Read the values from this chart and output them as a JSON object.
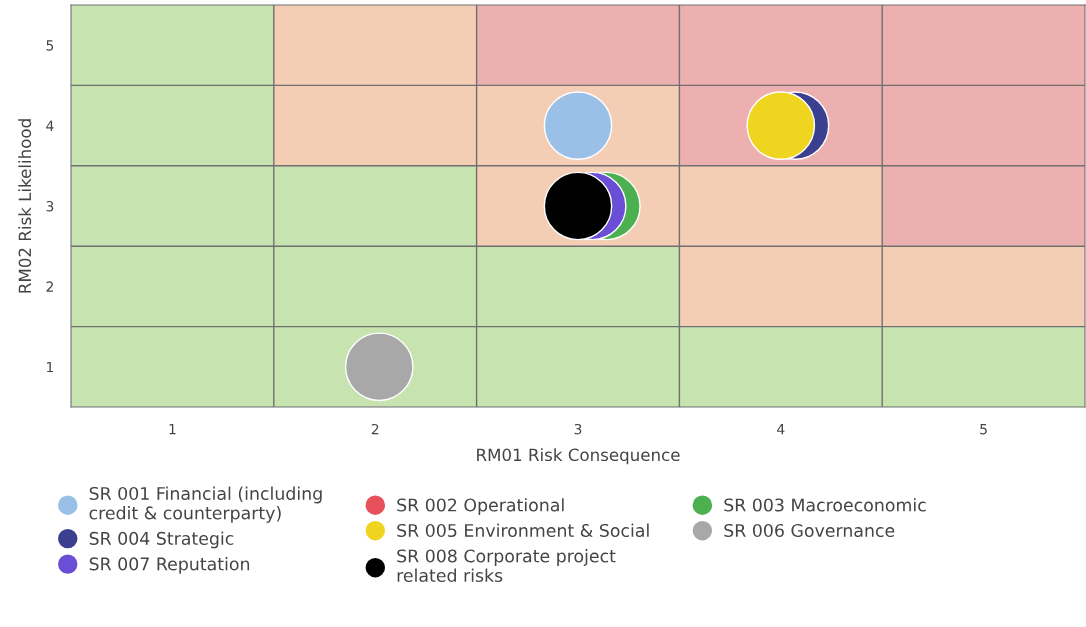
{
  "chart_data": {
    "type": "scatter",
    "xlabel": "RM01 Risk Consequence",
    "ylabel": "RM02 Risk Likelihood",
    "xlim": [
      0.5,
      5.5
    ],
    "ylim": [
      0.5,
      5.5
    ],
    "xticks": [
      1,
      2,
      3,
      4,
      5
    ],
    "yticks": [
      1,
      2,
      3,
      4,
      5
    ],
    "grid": true,
    "legend": "bottom",
    "marker": "circle",
    "series": [
      {
        "name": "SR 001 Financial (including credit & counterparty)",
        "color": "#9bc0e8",
        "x": [
          3.0
        ],
        "values": [
          4
        ]
      },
      {
        "name": "SR 002 Operational",
        "color": "#e8505b",
        "x": [
          null
        ],
        "values": [
          null
        ]
      },
      {
        "name": "SR 003 Macroeconomic",
        "color": "#4caf50",
        "x": [
          3.14
        ],
        "values": [
          3
        ]
      },
      {
        "name": "SR 004 Strategic",
        "color": "#3a3f8f",
        "x": [
          4.07
        ],
        "values": [
          4
        ]
      },
      {
        "name": "SR 005 Environment & Social",
        "color": "#f0d520",
        "x": [
          4.0
        ],
        "values": [
          4
        ]
      },
      {
        "name": "SR 006 Governance",
        "color": "#a8a8a8",
        "x": [
          2.02
        ],
        "values": [
          1
        ]
      },
      {
        "name": "SR 007 Reputation",
        "color": "#6a4fd6",
        "x": [
          3.07
        ],
        "values": [
          3
        ]
      },
      {
        "name": "SR 008 Corporate project related risks",
        "color": "#000000",
        "x": [
          3.0
        ],
        "values": [
          3
        ]
      }
    ]
  }
}
